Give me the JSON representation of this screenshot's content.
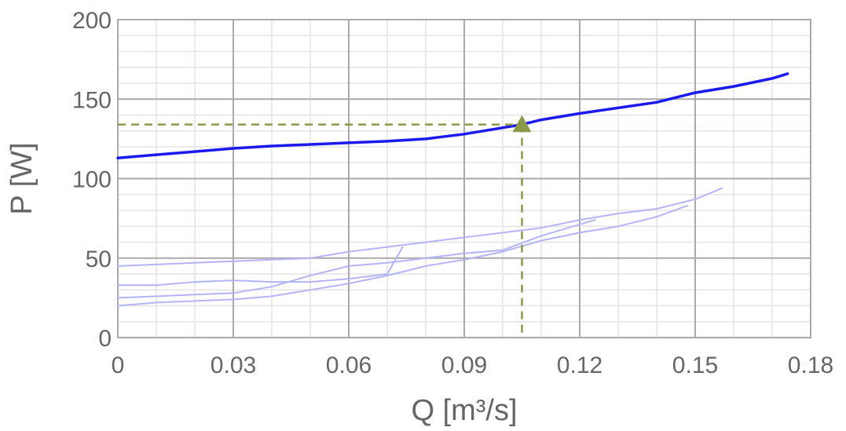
{
  "chart_data": {
    "type": "line",
    "title": "",
    "xlabel": "Q [m³/s]",
    "ylabel": "P [W]",
    "xlim": [
      0,
      0.18
    ],
    "ylim": [
      0,
      200
    ],
    "x_ticks": [
      "0",
      "0.03",
      "0.06",
      "0.09",
      "0.12",
      "0.15",
      "0.18"
    ],
    "y_ticks": [
      "0",
      "50",
      "100",
      "150",
      "200"
    ],
    "grid": true,
    "legend": "none",
    "colors": {
      "main": "#1a1aee",
      "background": "#b4b4f8",
      "operating_point": "#8a9a4a"
    },
    "series": [
      {
        "role": "main",
        "x": [
          0,
          0.01,
          0.02,
          0.03,
          0.04,
          0.05,
          0.06,
          0.07,
          0.08,
          0.09,
          0.1,
          0.105,
          0.11,
          0.12,
          0.13,
          0.14,
          0.15,
          0.16,
          0.17,
          0.174
        ],
        "y": [
          113,
          115,
          117,
          119,
          120.5,
          121.5,
          122.5,
          123.5,
          125,
          128,
          132,
          134,
          137,
          141,
          144.5,
          148,
          154,
          158,
          163,
          166
        ]
      },
      {
        "role": "background",
        "x": [
          0,
          0.01,
          0.02,
          0.03,
          0.04,
          0.05,
          0.06,
          0.07,
          0.08,
          0.09,
          0.1,
          0.11,
          0.12,
          0.13,
          0.14,
          0.15,
          0.157
        ],
        "y": [
          45,
          46,
          47,
          48,
          49,
          50,
          54,
          57,
          60,
          63,
          66,
          69,
          74,
          78,
          81,
          87,
          94
        ]
      },
      {
        "role": "background",
        "x": [
          0,
          0.01,
          0.02,
          0.03,
          0.04,
          0.05,
          0.06,
          0.07,
          0.074
        ],
        "y": [
          33,
          33,
          35,
          36,
          35,
          35,
          37,
          40,
          57
        ]
      },
      {
        "role": "background",
        "x": [
          0,
          0.01,
          0.02,
          0.03,
          0.04,
          0.05,
          0.06,
          0.07,
          0.08,
          0.09,
          0.1,
          0.11,
          0.124
        ],
        "y": [
          25,
          26,
          27,
          28,
          32,
          39,
          45,
          47,
          50,
          53,
          55,
          64,
          74
        ]
      },
      {
        "role": "background",
        "x": [
          0,
          0.01,
          0.02,
          0.03,
          0.04,
          0.05,
          0.06,
          0.07,
          0.08,
          0.09,
          0.1,
          0.11,
          0.12,
          0.13,
          0.14,
          0.148
        ],
        "y": [
          20,
          22,
          23,
          24,
          26,
          30,
          34,
          39,
          45,
          49,
          54,
          61,
          66,
          70,
          76,
          83
        ]
      }
    ],
    "operating_point": {
      "x": 0.105,
      "y": 134
    }
  }
}
